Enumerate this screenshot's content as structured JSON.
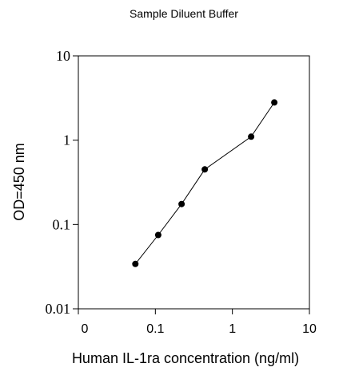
{
  "chart_data": {
    "type": "scatter",
    "title": "Sample Diluent Buffer",
    "xlabel": "Human IL-1ra concentration (ng/ml)",
    "ylabel": "OD=450 nm",
    "x_scale": "log",
    "y_scale": "log",
    "xlim": [
      0.01,
      10
    ],
    "ylim": [
      0.01,
      10
    ],
    "x_tick_labels": [
      "0",
      "0.1",
      "1",
      "10"
    ],
    "y_tick_labels": [
      "0.01",
      "0.1",
      "1",
      "10"
    ],
    "grid": false,
    "legend": "none",
    "series": [
      {
        "marker_color": "#000000",
        "line_color": "#000000",
        "x": [
          0.055,
          0.109,
          0.219,
          0.4375,
          1.75,
          3.5
        ],
        "y": [
          0.034,
          0.075,
          0.175,
          0.45,
          1.1,
          2.8
        ]
      }
    ]
  }
}
